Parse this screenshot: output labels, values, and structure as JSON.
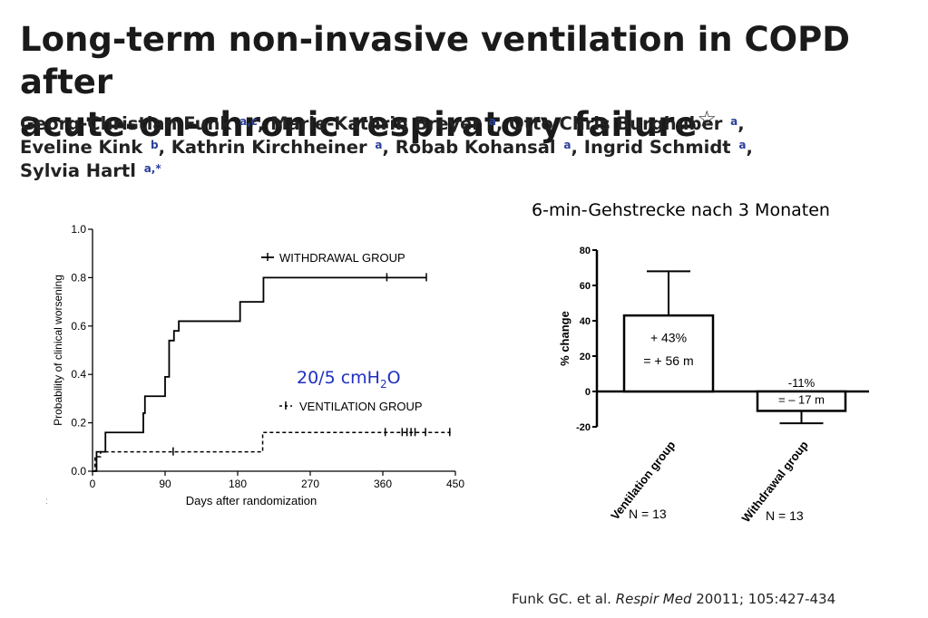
{
  "paper": {
    "title_line1": "Long-term non-invasive ventilation in COPD after",
    "title_line2": "acute-on-chronic respiratory failure",
    "title_mark": "☆",
    "authors": [
      {
        "name": "Georg-Christian Funk",
        "aff": "a,c",
        "sep": ","
      },
      {
        "name": "Marie-Kathrin Breyer",
        "aff": "a",
        "sep": ","
      },
      {
        "name": "Otto Chris Burghuber",
        "aff": "a",
        "sep": ","
      },
      {
        "name": "Eveline Kink",
        "aff": "b",
        "sep": ","
      },
      {
        "name": "Kathrin Kirchheiner",
        "aff": "a",
        "sep": ","
      },
      {
        "name": "Robab Kohansal",
        "aff": "a",
        "sep": ","
      },
      {
        "name": "Ingrid Schmidt",
        "aff": "a",
        "sep": ","
      },
      {
        "name": "Sylvia Hartl",
        "aff": "a,*",
        "sep": ""
      }
    ]
  },
  "annotations": {
    "pressure_prefix": "20/5 cmH",
    "pressure_sub": "2",
    "pressure_suffix": "O",
    "gehstrecke_title": "6-min-Gehstrecke nach 3 Monaten",
    "n_ventilation": "N = 13",
    "n_withdrawal": "N = 13",
    "stray_mark": ":"
  },
  "citation": {
    "authors": "Funk GC. et al. ",
    "journal": "Respir Med",
    "details": " 20011; 105:427-434"
  },
  "chart_data": [
    {
      "type": "line",
      "step": true,
      "xlabel": "Days after randomization",
      "ylabel": "Probability of clinical worsening",
      "xlim": [
        0,
        450
      ],
      "ylim": [
        0,
        1.0
      ],
      "x_ticks": [
        "0",
        "90",
        "180",
        "270",
        "360",
        "450"
      ],
      "y_ticks": [
        "0.0",
        "0.2",
        "0.4",
        "0.6",
        "0.8",
        "1.0"
      ],
      "series": [
        {
          "name": "WITHDRAWAL GROUP",
          "style": "solid",
          "color": "#000000",
          "x": [
            0,
            5,
            5,
            16,
            16,
            63,
            63,
            65,
            65,
            90,
            90,
            95,
            95,
            101,
            101,
            107,
            107,
            183,
            183,
            212,
            212,
            414
          ],
          "y": [
            0,
            0,
            0.08,
            0.08,
            0.16,
            0.16,
            0.24,
            0.24,
            0.31,
            0.31,
            0.39,
            0.39,
            0.54,
            0.54,
            0.58,
            0.58,
            0.62,
            0.62,
            0.7,
            0.7,
            0.8,
            0.8
          ],
          "censored_x": [
            365,
            414
          ]
        },
        {
          "name": "VENTILATION GROUP",
          "style": "dashed",
          "color": "#000000",
          "x": [
            0,
            3,
            3,
            10,
            10,
            211,
            211,
            444
          ],
          "y": [
            0,
            0,
            0.06,
            0.06,
            0.08,
            0.08,
            0.16,
            0.16
          ],
          "censored_x": [
            100,
            363,
            384,
            390,
            395,
            400,
            413,
            443
          ]
        }
      ],
      "legend": "top-right"
    },
    {
      "type": "bar",
      "ylabel": "% change",
      "ylim": [
        -20,
        80
      ],
      "y_ticks": [
        "80",
        "60",
        "40",
        "20",
        "0",
        "-20"
      ],
      "categories": [
        "Ventilation group",
        "Withdrawal group"
      ],
      "values": [
        43,
        -11
      ],
      "error_bars": [
        68,
        -18
      ],
      "data_labels": [
        [
          "+ 43%",
          "= + 56 m"
        ],
        [
          "-11%",
          "= – 17 m"
        ]
      ]
    }
  ]
}
